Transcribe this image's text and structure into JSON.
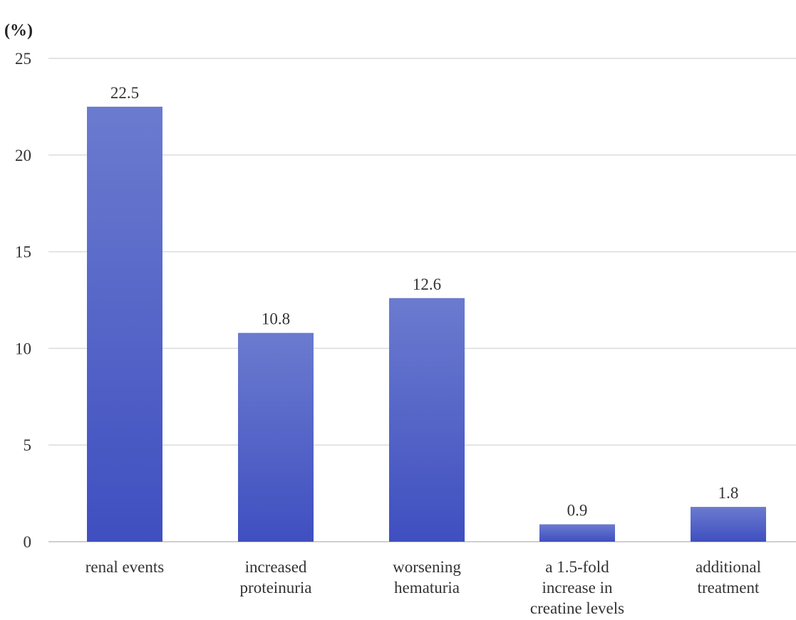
{
  "chart_data": {
    "type": "bar",
    "title": "",
    "xlabel": "",
    "ylabel": "(%)",
    "ylim": [
      0,
      25
    ],
    "yticks": [
      0,
      5,
      10,
      15,
      20,
      25
    ],
    "grid": true,
    "legend": "none",
    "categories": [
      [
        "renal events"
      ],
      [
        "increased",
        "proteinuria"
      ],
      [
        "worsening",
        "hematuria"
      ],
      [
        "a 1.5-fold",
        "increase in",
        "creatine levels"
      ],
      [
        "additional",
        "treatment"
      ]
    ],
    "values": [
      22.5,
      10.8,
      12.6,
      0.9,
      1.8
    ],
    "data_labels": [
      "22.5",
      "10.8",
      "12.6",
      "0.9",
      "1.8"
    ],
    "colors": {
      "bar_top": "#6b7bcf",
      "bar_bottom": "#3f4fc0",
      "grid": "#dcdcdc",
      "text": "#333333"
    }
  }
}
